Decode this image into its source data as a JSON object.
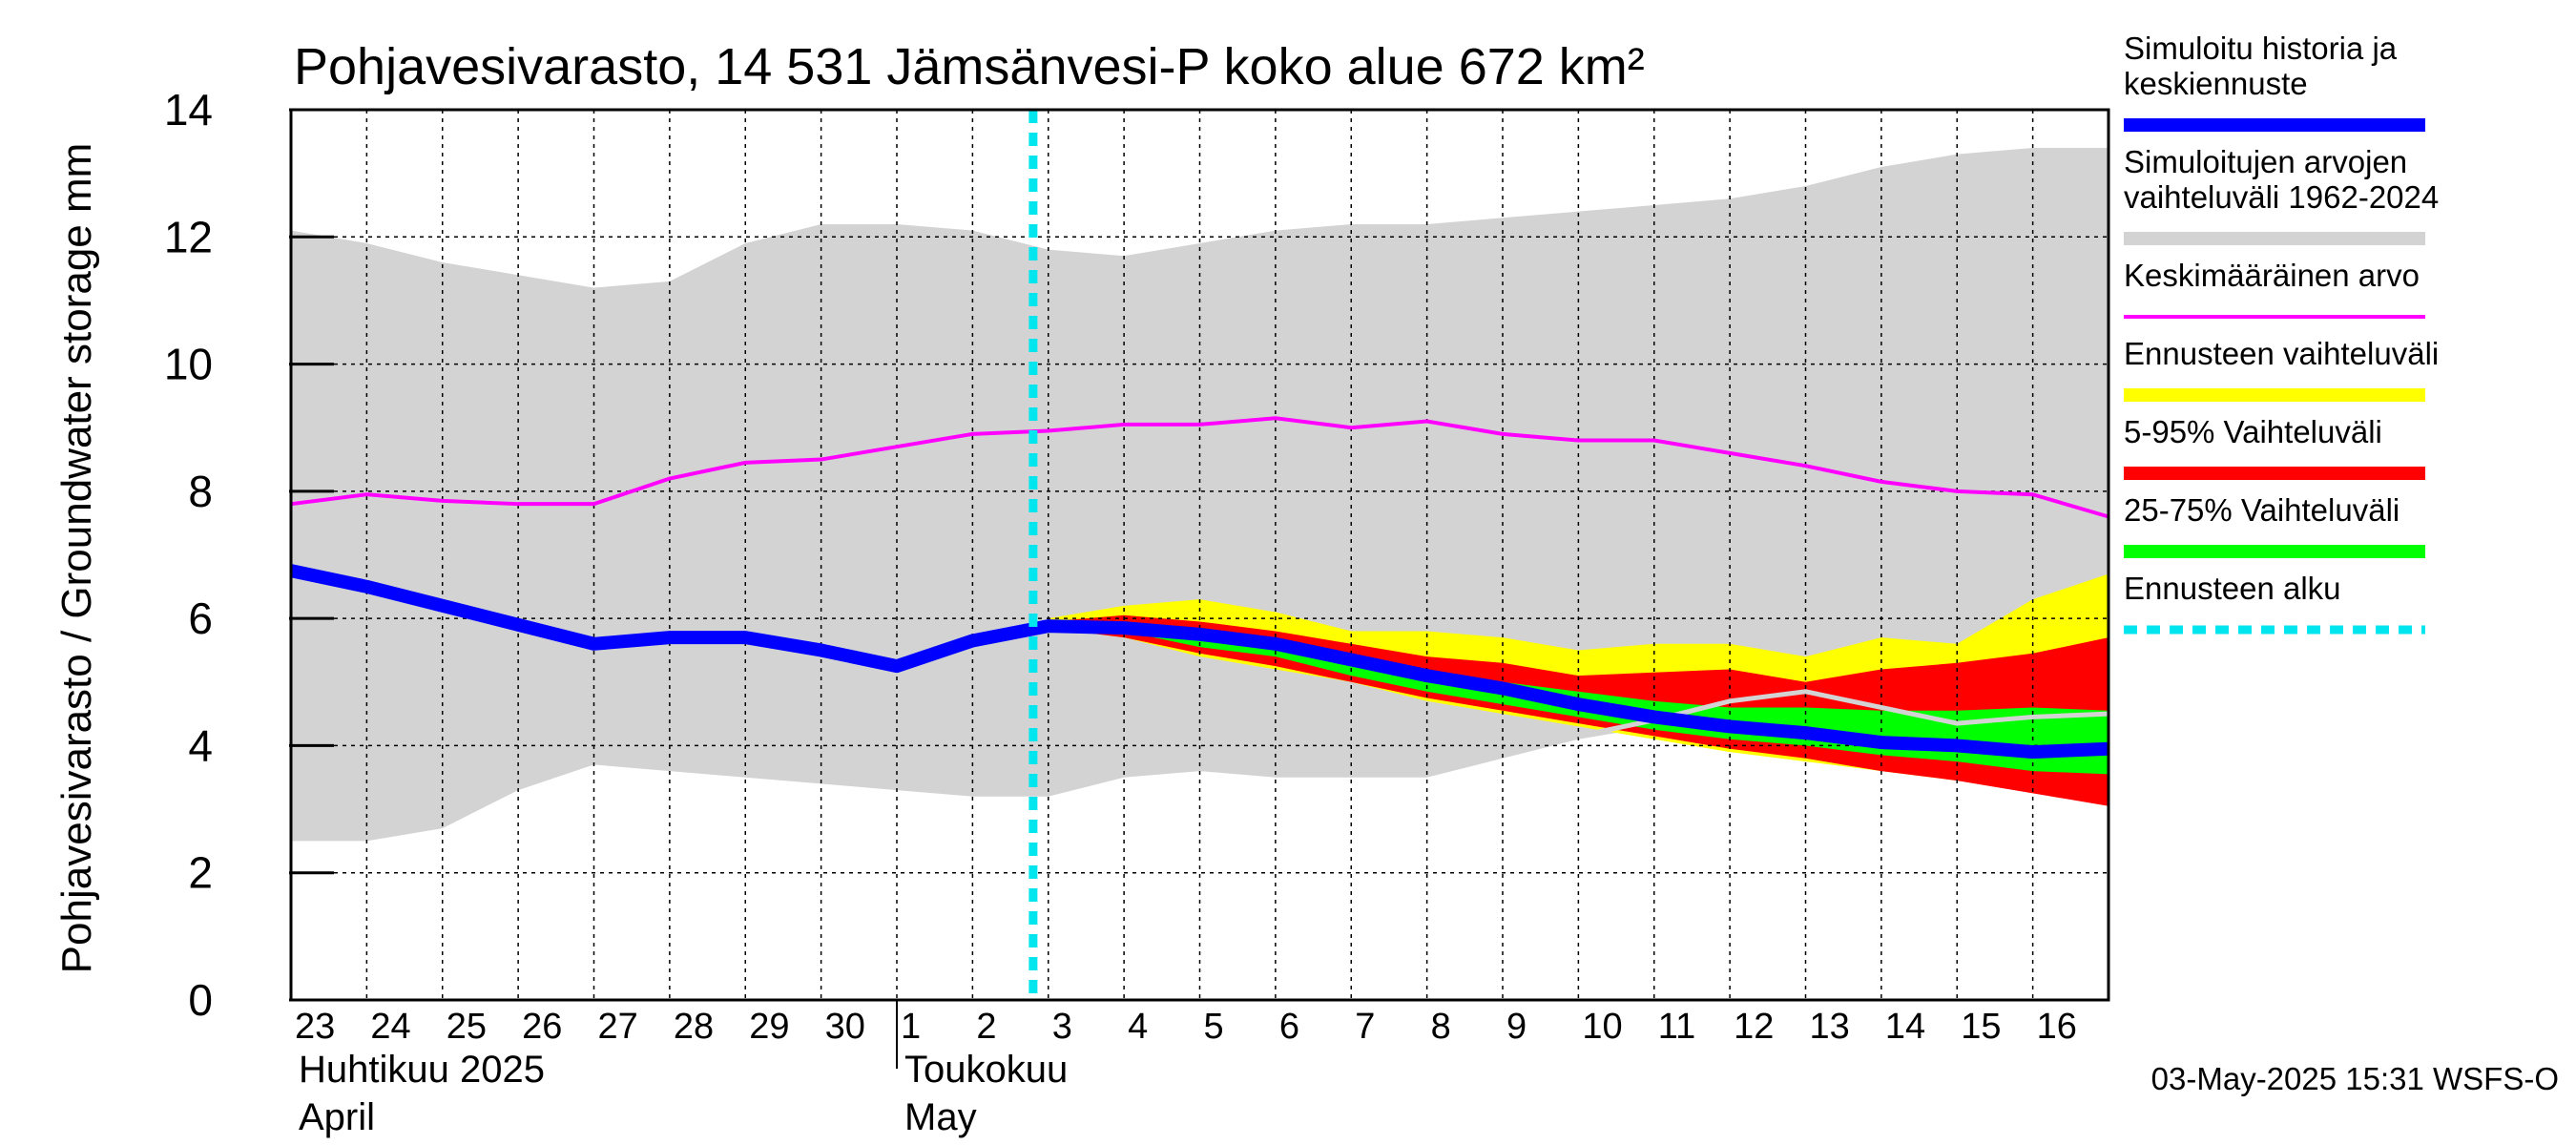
{
  "chart_data": {
    "type": "area",
    "title": "Pohjavesivarasto, 14 531 Jämsänvesi-P koko alue 672 km²",
    "ylabel": "Pohjavesivarasto / Groundwater storage   mm",
    "ylim": [
      0,
      14
    ],
    "yticks": [
      0,
      2,
      4,
      6,
      8,
      10,
      12,
      14
    ],
    "x_start_day_label": "23",
    "day_labels": [
      "23",
      "24",
      "25",
      "26",
      "27",
      "28",
      "29",
      "30",
      "1",
      "2",
      "3",
      "4",
      "5",
      "6",
      "7",
      "8",
      "9",
      "10",
      "11",
      "12",
      "13",
      "14",
      "15",
      "16"
    ],
    "month_labels": [
      {
        "fi": "Huhtikuu  2025",
        "en": "April",
        "start_index": 0
      },
      {
        "fi": "Toukokuu",
        "en": "May",
        "start_index": 8
      }
    ],
    "forecast_start_index": 10,
    "sim_range": {
      "x": [
        0,
        1,
        2,
        3,
        4,
        5,
        6,
        7,
        8,
        9,
        10,
        11,
        12,
        13,
        14,
        15,
        16,
        17,
        18,
        19,
        20,
        21,
        22,
        23,
        24
      ],
      "upper": [
        12.1,
        11.9,
        11.6,
        11.4,
        11.2,
        11.3,
        11.9,
        12.2,
        12.2,
        12.1,
        11.8,
        11.7,
        11.9,
        12.1,
        12.2,
        12.2,
        12.3,
        12.4,
        12.5,
        12.6,
        12.8,
        13.1,
        13.3,
        13.4,
        13.4
      ],
      "lower": [
        2.5,
        2.5,
        2.7,
        3.3,
        3.7,
        3.6,
        3.5,
        3.4,
        3.3,
        3.2,
        3.2,
        3.5,
        3.6,
        3.5,
        3.5,
        3.5,
        3.8,
        4.1,
        4.3,
        4.4,
        4.5,
        4.3,
        4.2,
        4.3,
        4.3
      ]
    },
    "mean": {
      "x": [
        0,
        1,
        2,
        3,
        4,
        5,
        6,
        7,
        8,
        9,
        10,
        11,
        12,
        13,
        14,
        15,
        16,
        17,
        18,
        19,
        20,
        21,
        22,
        23,
        24
      ],
      "values": [
        7.8,
        7.95,
        7.85,
        7.8,
        7.8,
        8.2,
        8.45,
        8.5,
        8.7,
        8.9,
        8.95,
        9.05,
        9.05,
        9.15,
        9.0,
        9.1,
        8.9,
        8.8,
        8.8,
        8.6,
        8.4,
        8.15,
        8.0,
        7.95,
        7.6
      ]
    },
    "forecast_x": [
      10,
      11,
      12,
      13,
      14,
      15,
      16,
      17,
      18,
      19,
      20,
      21,
      22,
      23,
      24
    ],
    "forecast_range": {
      "upper": [
        6.0,
        6.2,
        6.3,
        6.1,
        5.8,
        5.8,
        5.7,
        5.5,
        5.6,
        5.6,
        5.4,
        5.7,
        5.6,
        6.3,
        6.7
      ],
      "lower": [
        5.85,
        5.7,
        5.4,
        5.2,
        5.0,
        4.7,
        4.5,
        4.3,
        4.1,
        3.9,
        3.75,
        3.6,
        3.45,
        3.3,
        3.1
      ]
    },
    "band_5_95": {
      "upper": [
        5.95,
        6.05,
        5.95,
        5.8,
        5.6,
        5.4,
        5.3,
        5.1,
        5.15,
        5.2,
        5.0,
        5.2,
        5.3,
        5.45,
        5.7
      ],
      "lower": [
        5.85,
        5.7,
        5.45,
        5.25,
        5.0,
        4.75,
        4.55,
        4.35,
        4.15,
        3.95,
        3.8,
        3.6,
        3.45,
        3.25,
        3.05
      ]
    },
    "band_25_75": {
      "upper": [
        5.9,
        5.9,
        5.75,
        5.6,
        5.35,
        5.15,
        5.0,
        4.85,
        4.7,
        4.6,
        4.6,
        4.55,
        4.55,
        4.6,
        4.55
      ],
      "lower": [
        5.85,
        5.8,
        5.55,
        5.4,
        5.1,
        4.85,
        4.65,
        4.45,
        4.25,
        4.1,
        4.0,
        3.85,
        3.75,
        3.6,
        3.55
      ]
    },
    "history_forecast": {
      "x": [
        0,
        1,
        2,
        3,
        4,
        5,
        6,
        7,
        8,
        9,
        10,
        11,
        12,
        13,
        14,
        15,
        16,
        17,
        18,
        19,
        20,
        21,
        22,
        23,
        24
      ],
      "values": [
        6.75,
        6.5,
        6.2,
        5.9,
        5.6,
        5.7,
        5.7,
        5.5,
        5.25,
        5.65,
        5.88,
        5.85,
        5.75,
        5.6,
        5.35,
        5.1,
        4.9,
        4.65,
        4.45,
        4.3,
        4.2,
        4.05,
        4.0,
        3.9,
        3.95
      ]
    },
    "gray_trace": {
      "x": [
        17,
        18,
        19,
        20,
        21,
        22,
        23,
        24
      ],
      "values": [
        4.15,
        4.4,
        4.7,
        4.85,
        4.6,
        4.35,
        4.45,
        4.5
      ]
    },
    "legend": [
      {
        "label": "Simuloitu historia ja\nkeskiennuste",
        "color": "#0000ff",
        "style": "thick"
      },
      {
        "label": "Simuloitujen arvojen\nvaihteluväli 1962-2024",
        "color": "#d3d3d3",
        "style": "thick"
      },
      {
        "label": "Keskimääräinen arvo",
        "color": "#ff00ff",
        "style": "thin"
      },
      {
        "label": "Ennusteen vaihteluväli",
        "color": "#ffff00",
        "style": "thick"
      },
      {
        "label": "5-95% Vaihteluväli",
        "color": "#ff0000",
        "style": "thick"
      },
      {
        "label": "25-75% Vaihteluväli",
        "color": "#00ff00",
        "style": "thick"
      },
      {
        "label": "Ennusteen alku",
        "color": "#00e5ee",
        "style": "dashed"
      }
    ],
    "colors": {
      "sim_range": "#d3d3d3",
      "forecast_range": "#ffff00",
      "band_5_95": "#ff0000",
      "band_25_75": "#00ff00",
      "history": "#0000ff",
      "mean": "#ff00ff",
      "forecast_start": "#00e5ee",
      "gray_trace": "#d3d3d3",
      "grid": "#000000"
    }
  },
  "footer": "03-May-2025 15:31 WSFS-O"
}
